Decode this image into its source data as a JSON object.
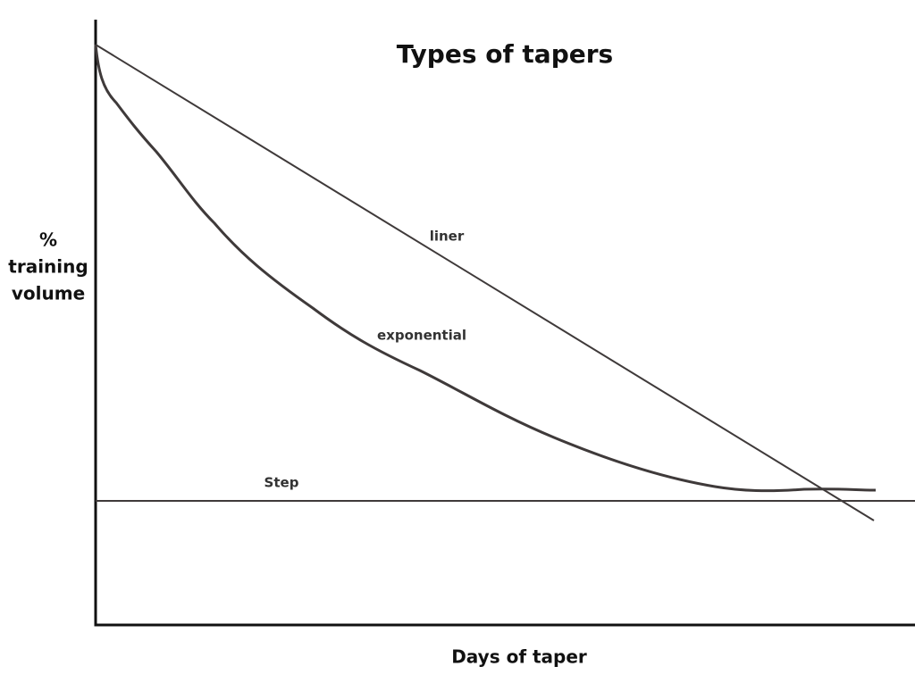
{
  "title": "Types of tapers",
  "y_axis_label": [
    "%",
    "training",
    "volume"
  ],
  "x_axis_label": "Days of taper",
  "curves": [
    {
      "label": "liner"
    },
    {
      "label": "exponential"
    },
    {
      "label": "Step"
    }
  ]
}
